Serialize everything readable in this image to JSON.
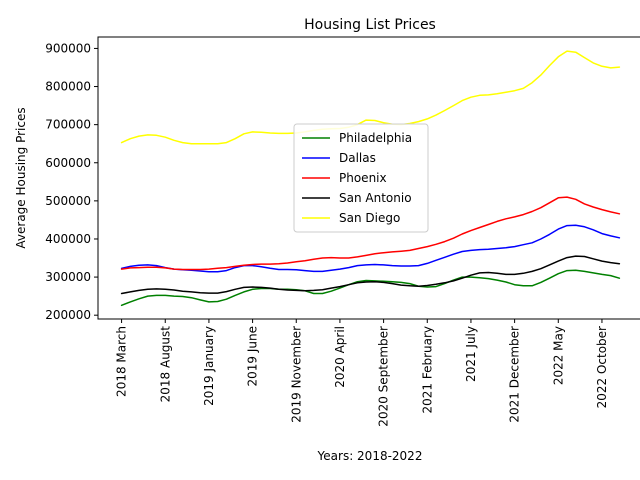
{
  "chart_data": {
    "type": "line",
    "title": "Housing List Prices",
    "xlabel": "Years: 2018-2022",
    "ylabel": "Average Housing Prices",
    "ylim": [
      190000,
      930000
    ],
    "yticks": [
      200000,
      300000,
      400000,
      500000,
      600000,
      700000,
      800000,
      900000
    ],
    "ytick_labels": [
      "200000",
      "300000",
      "400000",
      "500000",
      "600000",
      "700000",
      "800000",
      "900000"
    ],
    "x_range": [
      -2.7,
      59.7
    ],
    "xtick_positions": [
      0,
      5,
      10,
      15,
      20,
      25,
      30,
      35,
      40,
      45,
      50,
      55
    ],
    "xtick_labels": [
      "2018 March",
      "2018 August",
      "2019 January",
      "2019 June",
      "2019 November",
      "2020 April",
      "2020 September",
      "2021 February",
      "2021 July",
      "2021 December",
      "2022 May",
      "2022 October"
    ],
    "grid": false,
    "legend_position": "center",
    "x": [
      0,
      1,
      2,
      3,
      4,
      5,
      6,
      7,
      8,
      9,
      10,
      11,
      12,
      13,
      14,
      15,
      16,
      17,
      18,
      19,
      20,
      21,
      22,
      23,
      24,
      25,
      26,
      27,
      28,
      29,
      30,
      31,
      32,
      33,
      34,
      35,
      36,
      37,
      38,
      39,
      40,
      41,
      42,
      43,
      44,
      45,
      46,
      47,
      48,
      49,
      50,
      51,
      52,
      53,
      54,
      55,
      56,
      57
    ],
    "series": [
      {
        "name": "Philadelphia",
        "color": "#008000",
        "values": [
          226000,
          235000,
          243000,
          250000,
          252000,
          252000,
          250000,
          249000,
          246000,
          240000,
          235000,
          236000,
          242000,
          252000,
          261000,
          268000,
          270000,
          270000,
          268000,
          268000,
          267000,
          264000,
          257000,
          257000,
          263000,
          271000,
          280000,
          288000,
          291000,
          290000,
          289000,
          288000,
          286000,
          283000,
          276000,
          274000,
          275000,
          283000,
          292000,
          300000,
          300000,
          298000,
          296000,
          292000,
          287000,
          280000,
          277000,
          277000,
          286000,
          297000,
          309000,
          317000,
          318000,
          315000,
          311000,
          307000,
          304000,
          297000
        ]
      },
      {
        "name": "Dallas",
        "color": "#0000ff",
        "values": [
          323000,
          328000,
          331000,
          332000,
          330000,
          325000,
          321000,
          319000,
          318000,
          316000,
          314000,
          314000,
          317000,
          325000,
          330000,
          330000,
          327000,
          323000,
          320000,
          320000,
          319000,
          317000,
          315000,
          315000,
          318000,
          321000,
          325000,
          330000,
          332000,
          333000,
          332000,
          330000,
          329000,
          329000,
          330000,
          336000,
          344000,
          352000,
          360000,
          367000,
          370000,
          372000,
          373000,
          375000,
          377000,
          380000,
          385000,
          390000,
          400000,
          412000,
          426000,
          435000,
          436000,
          432000,
          424000,
          414000,
          408000,
          403000
        ]
      },
      {
        "name": "Phoenix",
        "color": "#ff0000",
        "values": [
          321000,
          324000,
          325000,
          326000,
          326000,
          324000,
          321000,
          320000,
          320000,
          320000,
          321000,
          323000,
          325000,
          328000,
          331000,
          333000,
          334000,
          334000,
          335000,
          337000,
          340000,
          343000,
          347000,
          350000,
          351000,
          350000,
          350000,
          353000,
          357000,
          361000,
          364000,
          366000,
          368000,
          370000,
          375000,
          380000,
          386000,
          393000,
          402000,
          413000,
          422000,
          430000,
          438000,
          446000,
          453000,
          458000,
          464000,
          472000,
          482000,
          495000,
          508000,
          510000,
          504000,
          492000,
          484000,
          477000,
          471000,
          466000
        ]
      },
      {
        "name": "San Antonio",
        "color": "#000000",
        "values": [
          257000,
          261000,
          265000,
          268000,
          269000,
          268000,
          266000,
          263000,
          261000,
          259000,
          258000,
          258000,
          262000,
          268000,
          273000,
          274000,
          273000,
          271000,
          268000,
          266000,
          265000,
          264000,
          265000,
          267000,
          271000,
          275000,
          280000,
          285000,
          287000,
          288000,
          286000,
          283000,
          279000,
          277000,
          276000,
          278000,
          281000,
          285000,
          290000,
          297000,
          305000,
          311000,
          312000,
          310000,
          307000,
          307000,
          310000,
          315000,
          322000,
          332000,
          342000,
          351000,
          355000,
          354000,
          348000,
          342000,
          338000,
          335000
        ]
      },
      {
        "name": "San Diego",
        "color": "#ffff00",
        "values": [
          653000,
          663000,
          670000,
          673000,
          672000,
          667000,
          659000,
          653000,
          650000,
          650000,
          650000,
          650000,
          653000,
          663000,
          676000,
          681000,
          680000,
          678000,
          677000,
          677000,
          678000,
          681000,
          685000,
          688000,
          689000,
          690000,
          693000,
          700000,
          712000,
          711000,
          705000,
          701000,
          700000,
          703000,
          708000,
          715000,
          725000,
          737000,
          750000,
          763000,
          772000,
          777000,
          778000,
          781000,
          785000,
          789000,
          795000,
          810000,
          830000,
          855000,
          878000,
          893000,
          890000,
          876000,
          862000,
          853000,
          849000,
          851000
        ]
      }
    ]
  }
}
